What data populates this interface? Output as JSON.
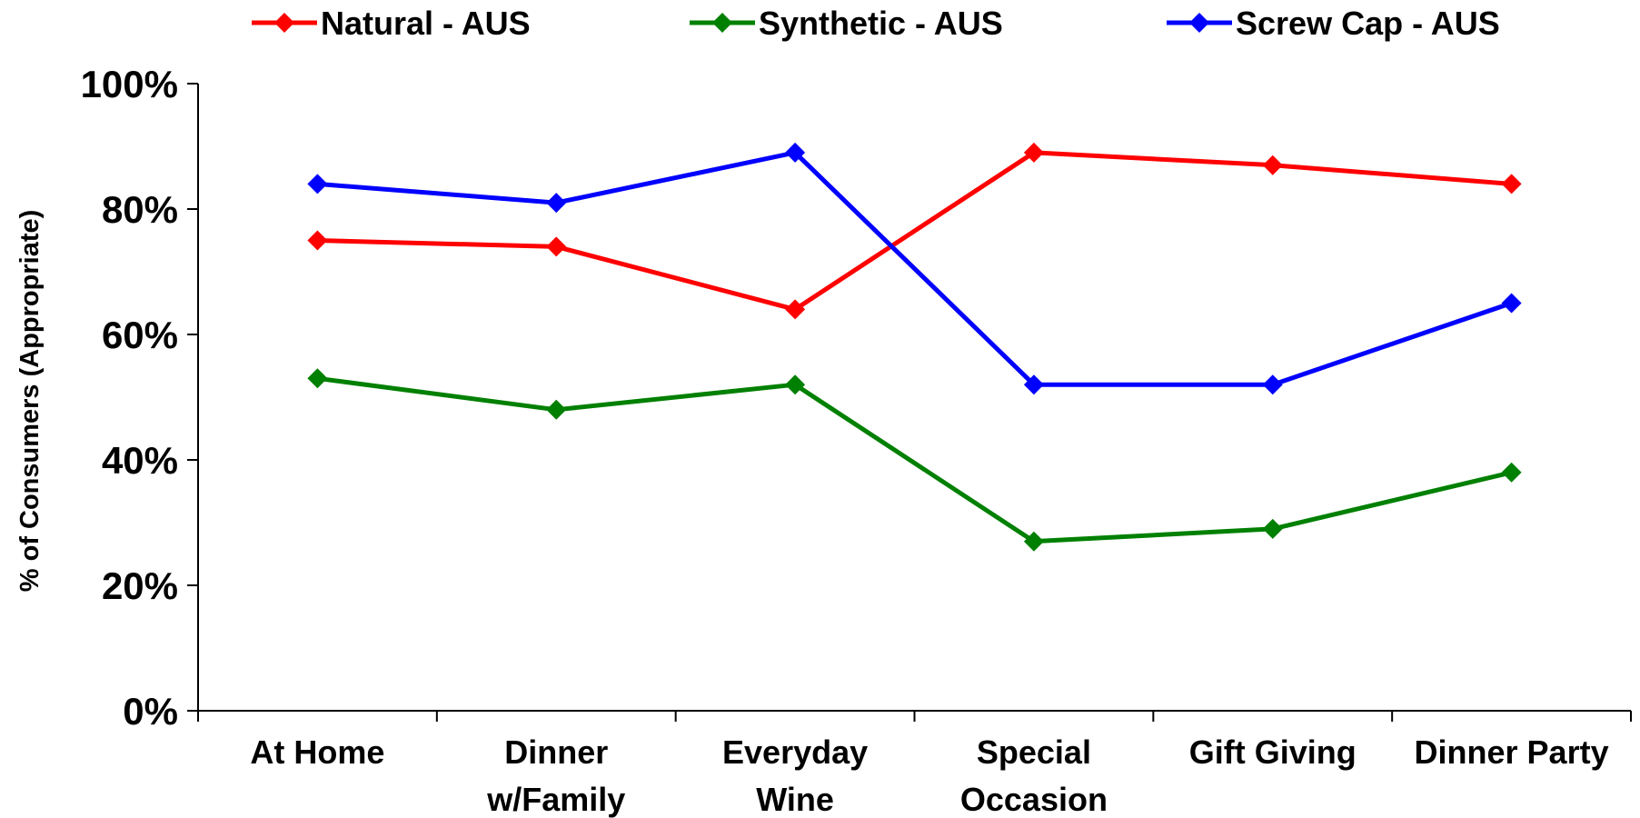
{
  "chart_data": {
    "type": "line",
    "categories": [
      [
        "At Home"
      ],
      [
        "Dinner",
        "w/Family"
      ],
      [
        "Everyday",
        "Wine"
      ],
      [
        "Special",
        "Occasion"
      ],
      [
        "Gift Giving"
      ],
      [
        "Dinner Party"
      ]
    ],
    "series": [
      {
        "name": "Natural - AUS",
        "color": "#ff0000",
        "values": [
          75,
          74,
          64,
          89,
          87,
          84
        ]
      },
      {
        "name": "Synthetic - AUS",
        "color": "#008000",
        "values": [
          53,
          48,
          52,
          27,
          29,
          38
        ]
      },
      {
        "name": "Screw Cap - AUS",
        "color": "#0000ff",
        "values": [
          84,
          81,
          89,
          52,
          52,
          65
        ]
      }
    ],
    "title": "",
    "xlabel": "",
    "ylabel": "% of Consumers (Appropriate)",
    "ylim": [
      0,
      100
    ],
    "yticks": [
      "0%",
      "20%",
      "40%",
      "60%",
      "80%",
      "100%"
    ],
    "grid": false,
    "legend_position": "top",
    "marker": "diamond"
  }
}
